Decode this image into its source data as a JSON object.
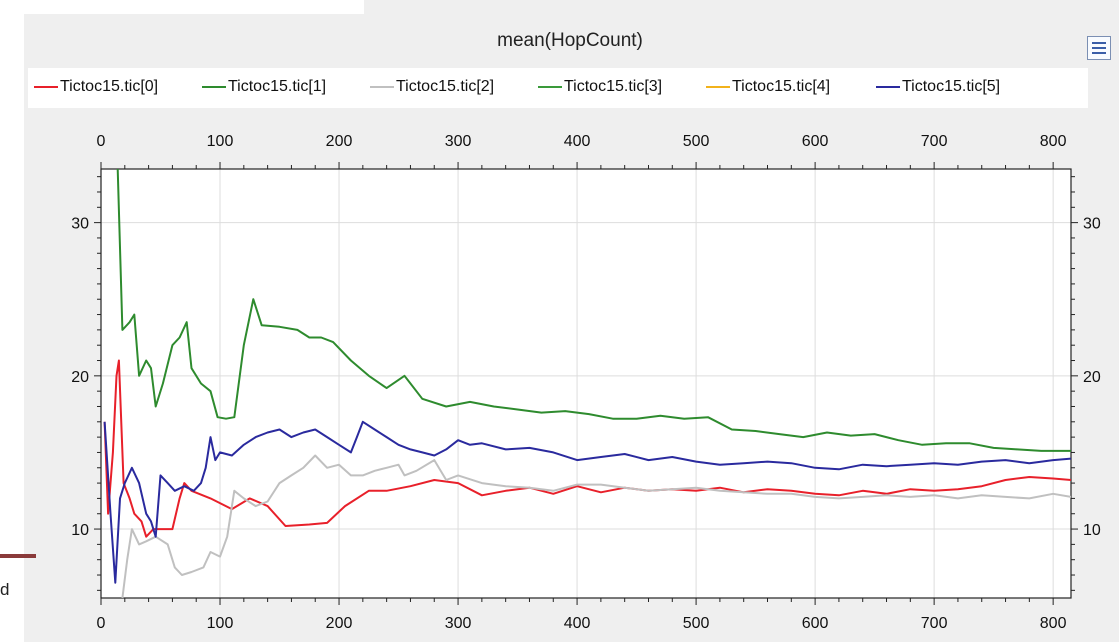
{
  "chart_data": {
    "type": "line",
    "title": "mean(HopCount)",
    "xlim": [
      0,
      815
    ],
    "ylim": [
      5.5,
      33.5
    ],
    "x_ticks": [
      "0",
      "100",
      "200",
      "300",
      "400",
      "500",
      "600",
      "700",
      "800"
    ],
    "y_ticks": [
      "10",
      "20",
      "30"
    ],
    "grid": true,
    "legend_position": "top",
    "series": [
      {
        "name": "Tictoc15.tic[0]",
        "color": "#e8202a",
        "points": [
          [
            3,
            17
          ],
          [
            6,
            11
          ],
          [
            10,
            15
          ],
          [
            13,
            20
          ],
          [
            15,
            21
          ],
          [
            19,
            13
          ],
          [
            24,
            12
          ],
          [
            28,
            11
          ],
          [
            34,
            10.5
          ],
          [
            38,
            9.5
          ],
          [
            44,
            10
          ],
          [
            52,
            10
          ],
          [
            60,
            10
          ],
          [
            66,
            12
          ],
          [
            70,
            13
          ],
          [
            76,
            12.5
          ],
          [
            92,
            12
          ],
          [
            110,
            11.3
          ],
          [
            125,
            12
          ],
          [
            140,
            11.5
          ],
          [
            155,
            10.2
          ],
          [
            175,
            10.3
          ],
          [
            190,
            10.4
          ],
          [
            205,
            11.5
          ],
          [
            225,
            12.5
          ],
          [
            240,
            12.5
          ],
          [
            260,
            12.8
          ],
          [
            280,
            13.2
          ],
          [
            300,
            13
          ],
          [
            320,
            12.2
          ],
          [
            340,
            12.5
          ],
          [
            360,
            12.7
          ],
          [
            380,
            12.3
          ],
          [
            400,
            12.8
          ],
          [
            420,
            12.4
          ],
          [
            440,
            12.7
          ],
          [
            460,
            12.5
          ],
          [
            480,
            12.6
          ],
          [
            500,
            12.5
          ],
          [
            520,
            12.7
          ],
          [
            540,
            12.4
          ],
          [
            560,
            12.6
          ],
          [
            580,
            12.5
          ],
          [
            600,
            12.3
          ],
          [
            620,
            12.2
          ],
          [
            640,
            12.5
          ],
          [
            660,
            12.3
          ],
          [
            680,
            12.6
          ],
          [
            700,
            12.5
          ],
          [
            720,
            12.6
          ],
          [
            740,
            12.8
          ],
          [
            760,
            13.2
          ],
          [
            780,
            13.4
          ],
          [
            800,
            13.3
          ],
          [
            815,
            13.2
          ]
        ]
      },
      {
        "name": "Tictoc15.tic[1]",
        "color": "#2e8b2e",
        "points": [
          [
            14,
            33.5
          ],
          [
            18,
            23
          ],
          [
            24,
            23.5
          ],
          [
            28,
            24
          ],
          [
            32,
            20
          ],
          [
            38,
            21
          ],
          [
            42,
            20.5
          ],
          [
            46,
            18
          ],
          [
            52,
            19.5
          ],
          [
            60,
            22
          ],
          [
            66,
            22.5
          ],
          [
            72,
            23.5
          ],
          [
            76,
            20.5
          ],
          [
            84,
            19.5
          ],
          [
            92,
            19
          ],
          [
            98,
            17.3
          ],
          [
            105,
            17.2
          ],
          [
            112,
            17.3
          ],
          [
            120,
            22
          ],
          [
            128,
            25
          ],
          [
            135,
            23.3
          ],
          [
            150,
            23.2
          ],
          [
            165,
            23
          ],
          [
            175,
            22.5
          ],
          [
            185,
            22.5
          ],
          [
            195,
            22.2
          ],
          [
            210,
            21
          ],
          [
            225,
            20
          ],
          [
            240,
            19.2
          ],
          [
            255,
            20
          ],
          [
            270,
            18.5
          ],
          [
            290,
            18
          ],
          [
            310,
            18.3
          ],
          [
            330,
            18
          ],
          [
            350,
            17.8
          ],
          [
            370,
            17.6
          ],
          [
            390,
            17.7
          ],
          [
            410,
            17.5
          ],
          [
            430,
            17.2
          ],
          [
            450,
            17.2
          ],
          [
            470,
            17.4
          ],
          [
            490,
            17.2
          ],
          [
            510,
            17.3
          ],
          [
            530,
            16.5
          ],
          [
            550,
            16.4
          ],
          [
            570,
            16.2
          ],
          [
            590,
            16
          ],
          [
            610,
            16.3
          ],
          [
            630,
            16.1
          ],
          [
            650,
            16.2
          ],
          [
            670,
            15.8
          ],
          [
            690,
            15.5
          ],
          [
            710,
            15.6
          ],
          [
            730,
            15.6
          ],
          [
            750,
            15.3
          ],
          [
            770,
            15.2
          ],
          [
            790,
            15.1
          ],
          [
            815,
            15.1
          ]
        ]
      },
      {
        "name": "Tictoc15.tic[2]",
        "color": "#c0c0c0",
        "points": [
          [
            18,
            5.5
          ],
          [
            22,
            8
          ],
          [
            26,
            10
          ],
          [
            32,
            9
          ],
          [
            38,
            9.2
          ],
          [
            46,
            9.5
          ],
          [
            56,
            9
          ],
          [
            62,
            7.5
          ],
          [
            68,
            7
          ],
          [
            76,
            7.2
          ],
          [
            86,
            7.5
          ],
          [
            92,
            8.5
          ],
          [
            100,
            8.2
          ],
          [
            106,
            9.5
          ],
          [
            112,
            12.5
          ],
          [
            120,
            12
          ],
          [
            130,
            11.5
          ],
          [
            140,
            11.8
          ],
          [
            150,
            13
          ],
          [
            160,
            13.5
          ],
          [
            170,
            14
          ],
          [
            180,
            14.8
          ],
          [
            190,
            14
          ],
          [
            200,
            14.2
          ],
          [
            210,
            13.5
          ],
          [
            220,
            13.5
          ],
          [
            230,
            13.8
          ],
          [
            240,
            14
          ],
          [
            250,
            14.2
          ],
          [
            255,
            13.5
          ],
          [
            265,
            13.8
          ],
          [
            280,
            14.5
          ],
          [
            290,
            13.2
          ],
          [
            300,
            13.5
          ],
          [
            320,
            13
          ],
          [
            340,
            12.8
          ],
          [
            360,
            12.7
          ],
          [
            380,
            12.5
          ],
          [
            400,
            12.9
          ],
          [
            420,
            12.9
          ],
          [
            440,
            12.7
          ],
          [
            460,
            12.5
          ],
          [
            480,
            12.6
          ],
          [
            500,
            12.7
          ],
          [
            520,
            12.5
          ],
          [
            540,
            12.4
          ],
          [
            560,
            12.3
          ],
          [
            580,
            12.3
          ],
          [
            600,
            12.1
          ],
          [
            620,
            12
          ],
          [
            640,
            12.1
          ],
          [
            660,
            12.2
          ],
          [
            680,
            12.1
          ],
          [
            700,
            12.2
          ],
          [
            720,
            12
          ],
          [
            740,
            12.2
          ],
          [
            760,
            12.1
          ],
          [
            780,
            12
          ],
          [
            800,
            12.3
          ],
          [
            815,
            12.1
          ]
        ]
      },
      {
        "name": "Tictoc15.tic[3]",
        "color": "#3a9a3a",
        "points": []
      },
      {
        "name": "Tictoc15.tic[4]",
        "color": "#f2b21b",
        "points": []
      },
      {
        "name": "Tictoc15.tic[5]",
        "color": "#2a2a9e",
        "points": [
          [
            3,
            17
          ],
          [
            8,
            11
          ],
          [
            12,
            6.5
          ],
          [
            16,
            12
          ],
          [
            20,
            13
          ],
          [
            26,
            14
          ],
          [
            32,
            13
          ],
          [
            38,
            11
          ],
          [
            42,
            10.5
          ],
          [
            46,
            9.5
          ],
          [
            50,
            13.5
          ],
          [
            56,
            13
          ],
          [
            62,
            12.5
          ],
          [
            70,
            12.8
          ],
          [
            78,
            12.5
          ],
          [
            84,
            13
          ],
          [
            88,
            14
          ],
          [
            92,
            16
          ],
          [
            96,
            14.5
          ],
          [
            100,
            15
          ],
          [
            110,
            14.8
          ],
          [
            120,
            15.5
          ],
          [
            130,
            16
          ],
          [
            140,
            16.3
          ],
          [
            150,
            16.5
          ],
          [
            160,
            16
          ],
          [
            170,
            16.3
          ],
          [
            180,
            16.5
          ],
          [
            190,
            16
          ],
          [
            200,
            15.5
          ],
          [
            210,
            15
          ],
          [
            215,
            16
          ],
          [
            220,
            17
          ],
          [
            230,
            16.5
          ],
          [
            240,
            16
          ],
          [
            250,
            15.5
          ],
          [
            260,
            15.2
          ],
          [
            270,
            15
          ],
          [
            280,
            14.8
          ],
          [
            290,
            15.2
          ],
          [
            300,
            15.8
          ],
          [
            310,
            15.5
          ],
          [
            320,
            15.6
          ],
          [
            340,
            15.2
          ],
          [
            360,
            15.3
          ],
          [
            380,
            15
          ],
          [
            400,
            14.5
          ],
          [
            420,
            14.7
          ],
          [
            440,
            14.9
          ],
          [
            460,
            14.5
          ],
          [
            480,
            14.7
          ],
          [
            500,
            14.4
          ],
          [
            520,
            14.2
          ],
          [
            540,
            14.3
          ],
          [
            560,
            14.4
          ],
          [
            580,
            14.3
          ],
          [
            600,
            14
          ],
          [
            620,
            13.9
          ],
          [
            640,
            14.2
          ],
          [
            660,
            14.1
          ],
          [
            680,
            14.2
          ],
          [
            700,
            14.3
          ],
          [
            720,
            14.2
          ],
          [
            740,
            14.4
          ],
          [
            760,
            14.5
          ],
          [
            780,
            14.3
          ],
          [
            800,
            14.5
          ],
          [
            815,
            14.6
          ]
        ]
      }
    ]
  },
  "ui": {
    "title": "mean(HopCount)",
    "legend_button_icon": "legend-list-icon",
    "side_letter": "d"
  }
}
